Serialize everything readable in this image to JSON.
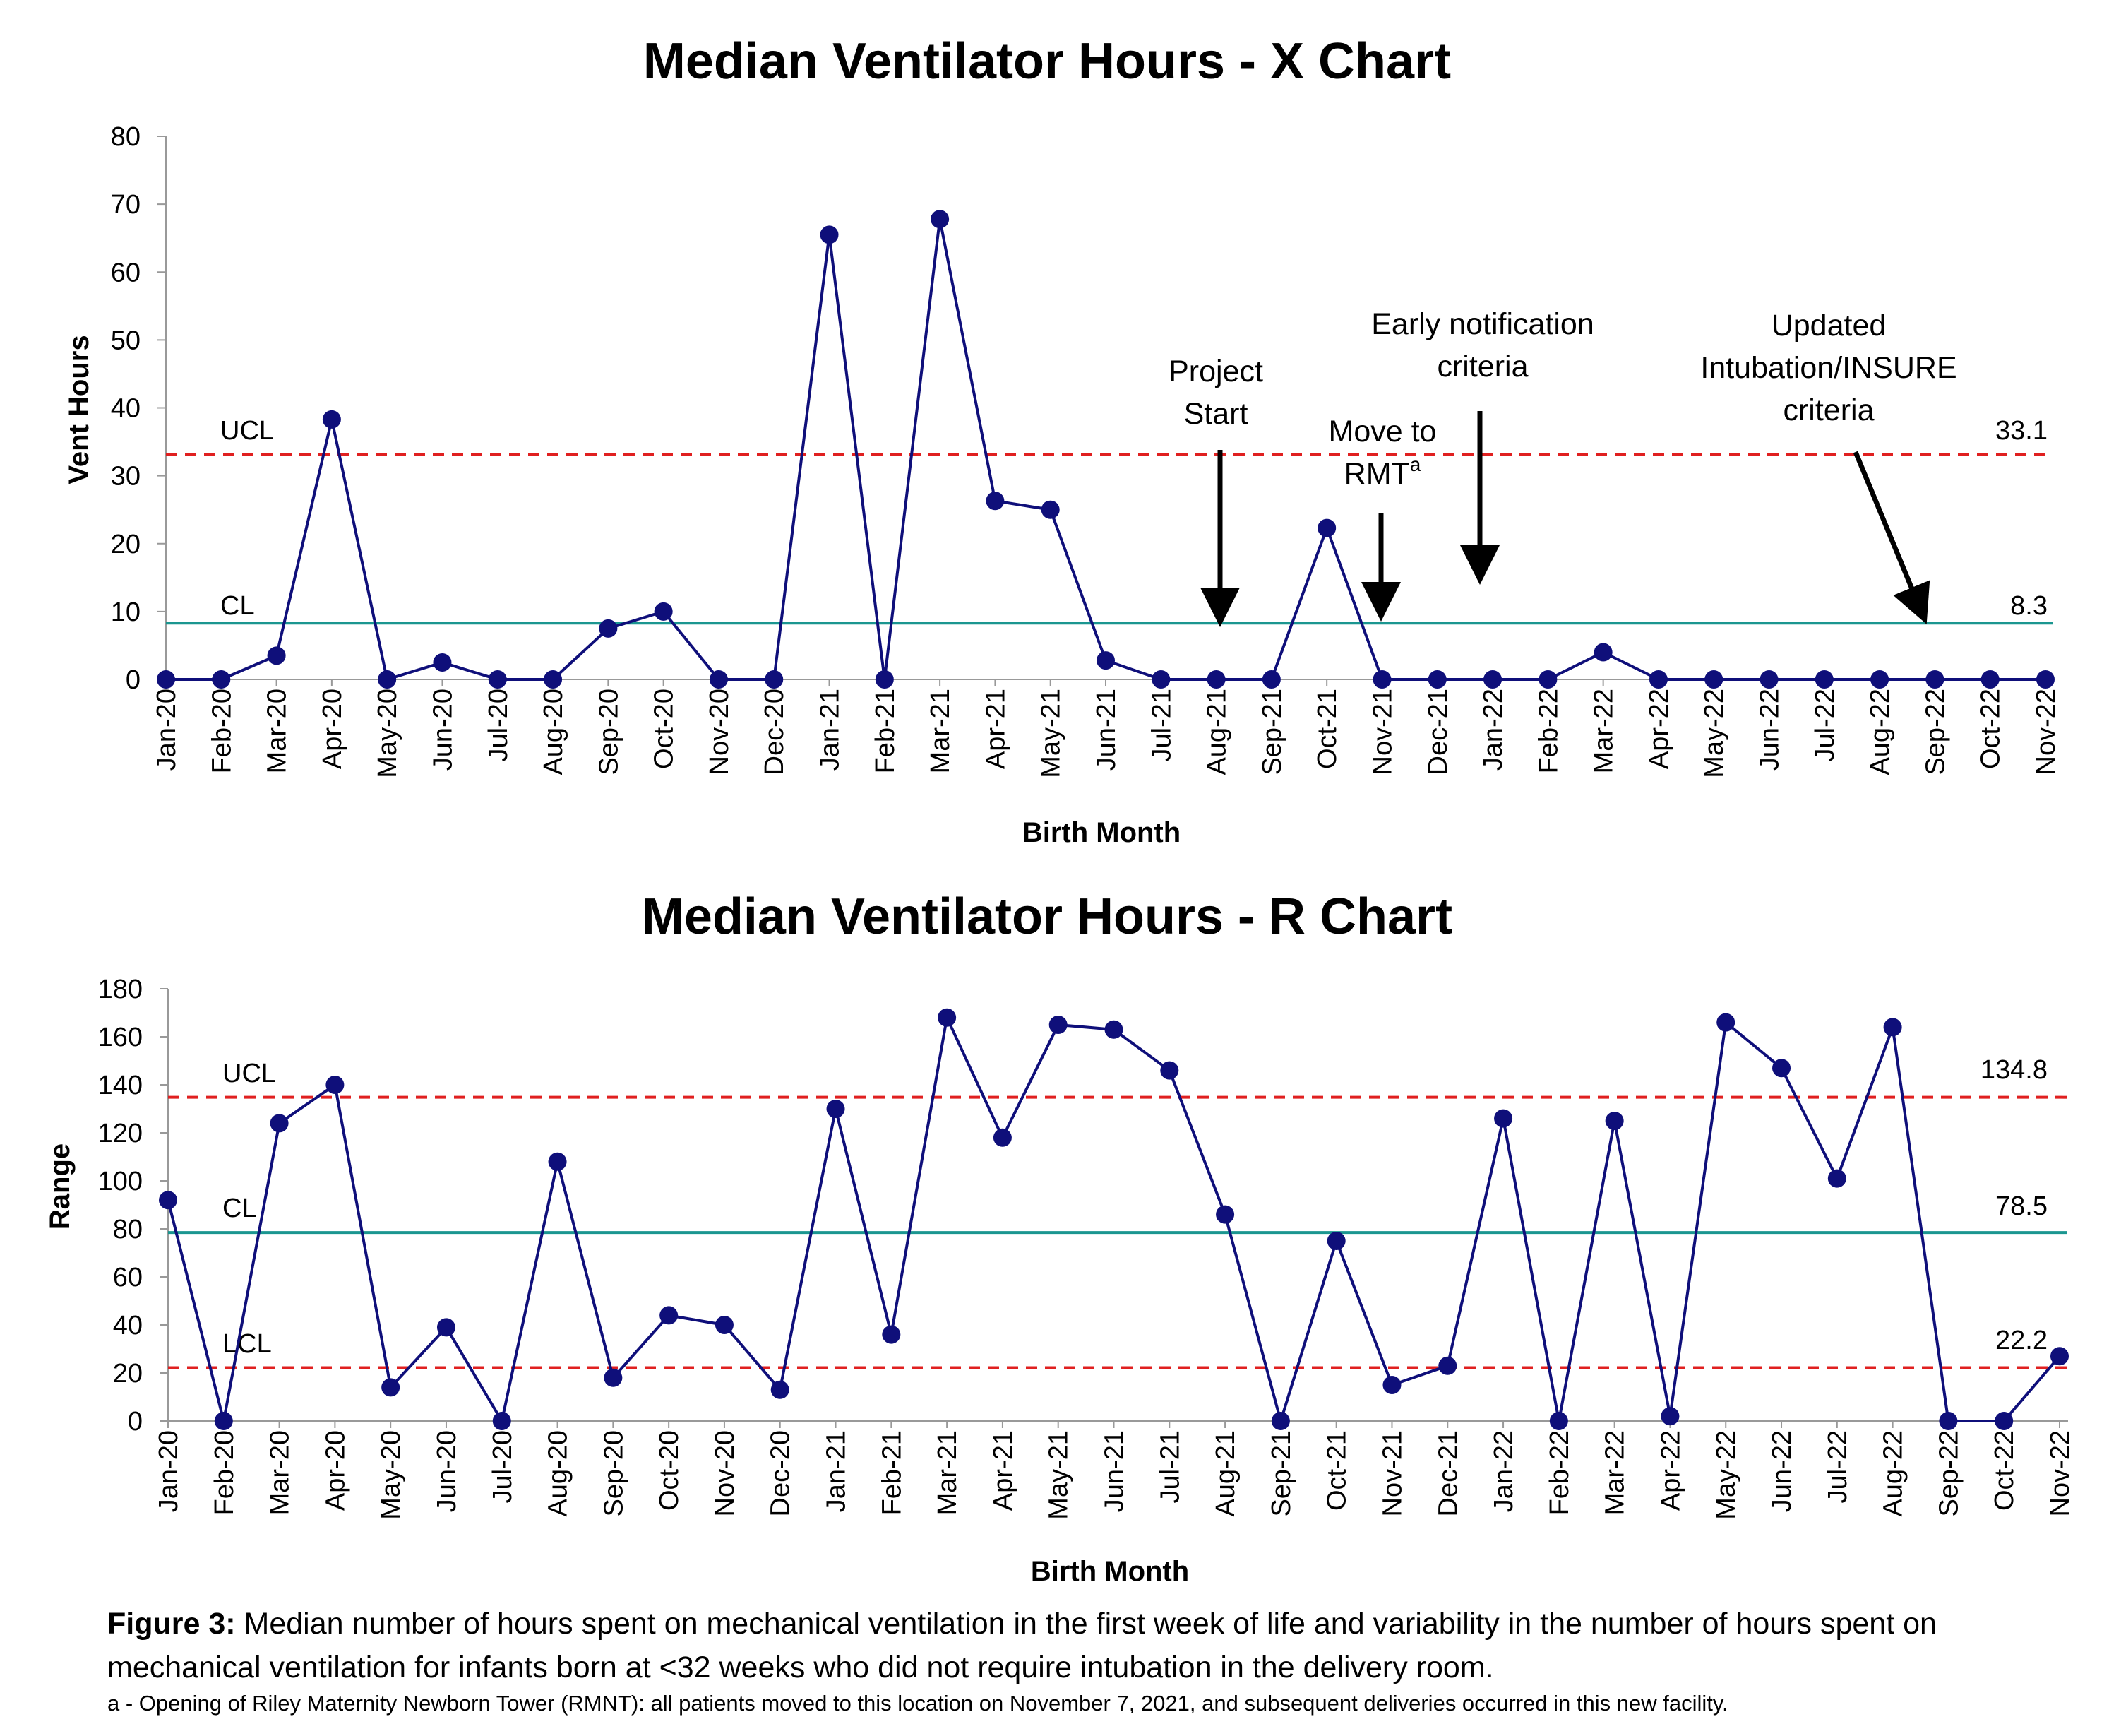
{
  "months": [
    "Jan-20",
    "Feb-20",
    "Mar-20",
    "Apr-20",
    "May-20",
    "Jun-20",
    "Jul-20",
    "Aug-20",
    "Sep-20",
    "Oct-20",
    "Nov-20",
    "Dec-20",
    "Jan-21",
    "Feb-21",
    "Mar-21",
    "Apr-21",
    "May-21",
    "Jun-21",
    "Jul-21",
    "Aug-21",
    "Sep-21",
    "Oct-21",
    "Nov-21",
    "Dec-21",
    "Jan-22",
    "Feb-22",
    "Mar-22",
    "Apr-22",
    "May-22",
    "Jun-22",
    "Jul-22",
    "Aug-22",
    "Sep-22",
    "Oct-22",
    "Nov-22"
  ],
  "colors": {
    "series": "#0f0f7a",
    "cl": "#1b9690",
    "limit": "#e02020",
    "arrow": "#000000"
  },
  "chart_data": [
    {
      "type": "line",
      "title": "Median Ventilator Hours - X Chart",
      "xlabel": "Birth Month",
      "ylabel": "Vent Hours",
      "ylim": [
        0,
        80
      ],
      "yticks": [
        0,
        10,
        20,
        30,
        40,
        50,
        60,
        70,
        80
      ],
      "values": [
        0,
        0,
        3.5,
        38.3,
        0,
        2.5,
        0,
        0,
        7.5,
        10,
        0,
        0,
        65.5,
        0,
        67.8,
        26.3,
        25,
        2.8,
        0,
        0,
        0,
        22.3,
        0,
        0,
        0,
        0,
        4,
        0,
        0,
        0,
        0,
        0,
        0,
        0,
        0
      ],
      "ucl": {
        "label": "UCL",
        "value": 33.1,
        "value_label": "33.1"
      },
      "cl": {
        "label": "CL",
        "value": 8.3,
        "value_label": "8.3"
      },
      "annotations": [
        {
          "lines": [
            "Project",
            "Start"
          ],
          "month": "Aug-21"
        },
        {
          "lines": [
            "Move to",
            "RMT"
          ],
          "sup": "a",
          "month": "Nov-21"
        },
        {
          "lines": [
            "Early notification",
            "criteria"
          ],
          "month": "Jan-22"
        },
        {
          "lines": [
            "Updated",
            "Intubation/INSURE",
            "criteria"
          ],
          "month": "Sep-22"
        }
      ]
    },
    {
      "type": "line",
      "title": "Median Ventilator Hours - R Chart",
      "xlabel": "Birth Month",
      "ylabel": "Range",
      "ylim": [
        0,
        180
      ],
      "yticks": [
        0,
        20,
        40,
        60,
        80,
        100,
        120,
        140,
        160,
        180
      ],
      "values": [
        92,
        0,
        124,
        140,
        14,
        39,
        0,
        108,
        18,
        44,
        40,
        13,
        130,
        36,
        168,
        118,
        165,
        163,
        146,
        86,
        0,
        75,
        15,
        23,
        126,
        0,
        125,
        2,
        166,
        147,
        101,
        164,
        0,
        0,
        27
      ],
      "ucl": {
        "label": "UCL",
        "value": 134.8,
        "value_label": "134.8"
      },
      "cl": {
        "label": "CL",
        "value": 78.5,
        "value_label": "78.5"
      },
      "lcl": {
        "label": "LCL",
        "value": 22.2,
        "value_label": "22.2"
      }
    }
  ],
  "caption": {
    "label": "Figure 3:",
    "text": " Median number of hours spent on mechanical ventilation in the first week of life and variability in the number of hours spent on mechanical ventilation for infants born at <32 weeks who did not require intubation in the delivery room."
  },
  "footnote": "a - Opening of Riley Maternity Newborn Tower (RMNT): all patients moved to this location on November 7, 2021, and subsequent deliveries occurred in this new facility."
}
